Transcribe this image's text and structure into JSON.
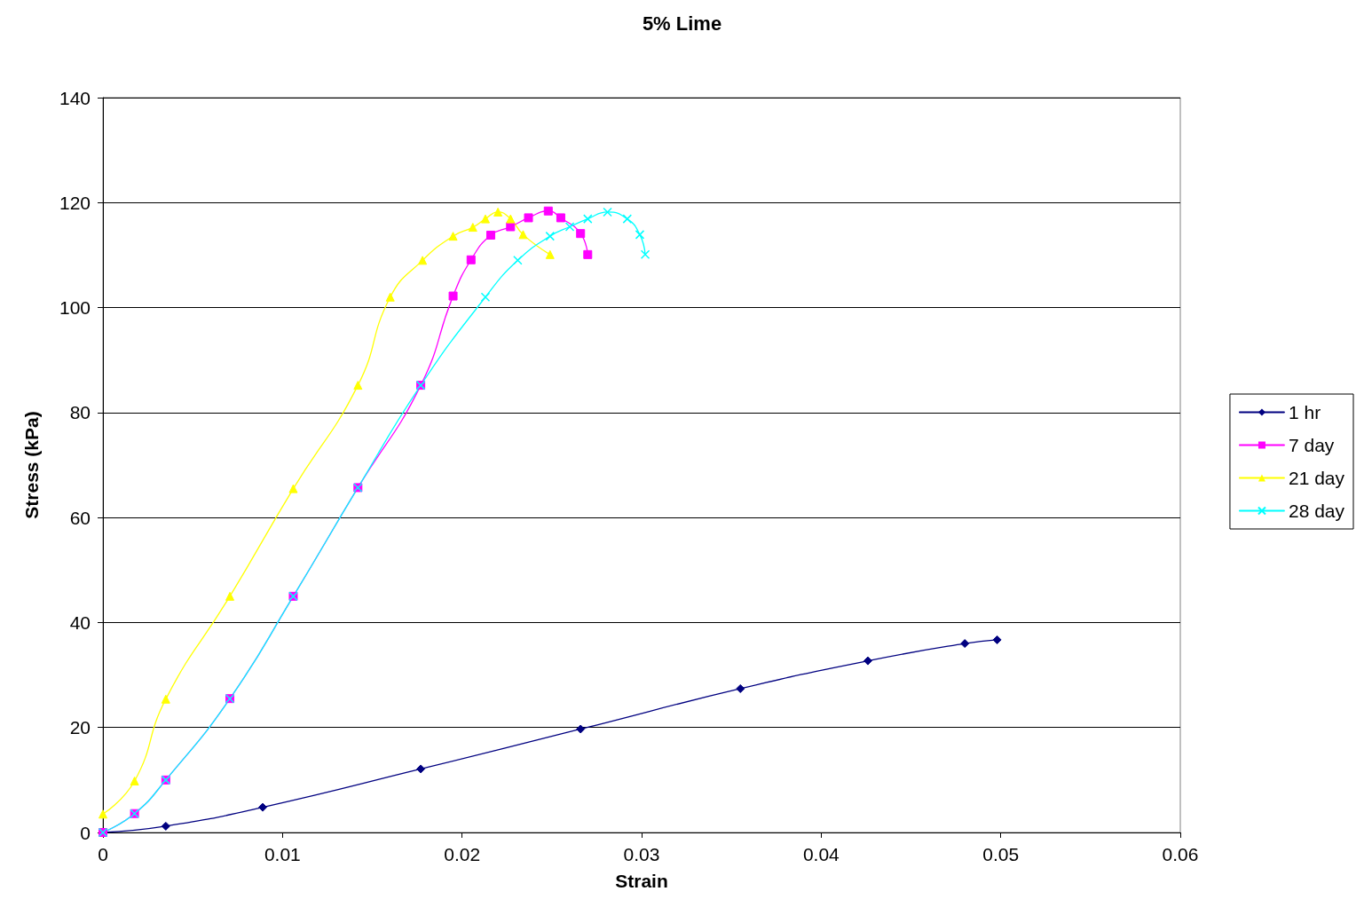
{
  "chart_data": {
    "type": "line",
    "title": "5% Lime",
    "xlabel": "Strain",
    "ylabel": "Stress (kPa)",
    "xlim": [
      0,
      0.06
    ],
    "xticks": [
      0,
      0.01,
      0.02,
      0.03,
      0.04,
      0.05,
      0.06
    ],
    "ylim": [
      0,
      140
    ],
    "yticks": [
      0,
      20,
      40,
      60,
      80,
      100,
      120,
      140
    ],
    "grid": "y",
    "legend": "right",
    "line_style": "solid",
    "series": [
      {
        "name": "1 hr",
        "color": "#000080",
        "marker": "diamond",
        "x": [
          0,
          0.0035,
          0.0089,
          0.0177,
          0.0266,
          0.0355,
          0.0426,
          0.048,
          0.0498
        ],
        "values": [
          0,
          1.2,
          4.8,
          12.1,
          19.7,
          27.4,
          32.7,
          36.0,
          36.7
        ]
      },
      {
        "name": "7 day",
        "color": "#ff00ff",
        "marker": "square",
        "x": [
          0,
          0.00176,
          0.0035,
          0.00707,
          0.0106,
          0.0142,
          0.0177,
          0.0195,
          0.0205,
          0.0216,
          0.0227,
          0.0237,
          0.0248,
          0.0255,
          0.0266,
          0.027
        ],
        "values": [
          0,
          3.6,
          10,
          25.5,
          45,
          65.7,
          85.2,
          102.2,
          109.1,
          113.8,
          115.4,
          117.1,
          118.4,
          117.1,
          114.1,
          110.1
        ]
      },
      {
        "name": "21 day",
        "color": "#ffff00",
        "marker": "triangle",
        "x": [
          0,
          0.00176,
          0.0035,
          0.00707,
          0.0106,
          0.0142,
          0.016,
          0.0178,
          0.0195,
          0.0206,
          0.0213,
          0.022,
          0.0227,
          0.0234,
          0.0249
        ],
        "values": [
          3.5,
          9.8,
          25.4,
          45,
          65.5,
          85.2,
          102,
          109,
          113.6,
          115.3,
          116.9,
          118.2,
          116.9,
          113.9,
          110.1
        ]
      },
      {
        "name": "28 day",
        "color": "#00ffff",
        "marker": "cross",
        "x": [
          0,
          0.00176,
          0.0035,
          0.00707,
          0.0106,
          0.0142,
          0.0177,
          0.0213,
          0.0231,
          0.0249,
          0.026,
          0.027,
          0.0281,
          0.0292,
          0.0299,
          0.0302
        ],
        "values": [
          0,
          3.6,
          10,
          25.5,
          45,
          65.7,
          85.2,
          102,
          109,
          113.6,
          115.4,
          116.9,
          118.2,
          116.9,
          113.9,
          110.1
        ]
      }
    ]
  }
}
